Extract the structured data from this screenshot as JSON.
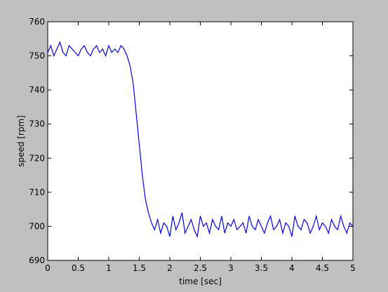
{
  "chart_data": {
    "type": "line",
    "xlabel": "time [sec]",
    "ylabel": "speed [rpm]",
    "x": [
      0,
      0.05,
      0.1,
      0.15,
      0.2,
      0.25,
      0.3,
      0.35,
      0.4,
      0.45,
      0.5,
      0.55,
      0.6,
      0.65,
      0.7,
      0.75,
      0.8,
      0.85,
      0.9,
      0.95,
      1,
      1.05,
      1.1,
      1.15,
      1.2,
      1.25,
      1.3,
      1.35,
      1.4,
      1.45,
      1.5,
      1.55,
      1.6,
      1.65,
      1.7,
      1.75,
      1.8,
      1.85,
      1.9,
      1.95,
      2,
      2.05,
      2.1,
      2.15,
      2.2,
      2.25,
      2.3,
      2.35,
      2.4,
      2.45,
      2.5,
      2.55,
      2.6,
      2.65,
      2.7,
      2.75,
      2.8,
      2.85,
      2.9,
      2.95,
      3,
      3.05,
      3.1,
      3.15,
      3.2,
      3.25,
      3.3,
      3.35,
      3.4,
      3.45,
      3.5,
      3.55,
      3.6,
      3.65,
      3.7,
      3.75,
      3.8,
      3.85,
      3.9,
      3.95,
      4,
      4.05,
      4.1,
      4.15,
      4.2,
      4.25,
      4.3,
      4.35,
      4.4,
      4.45,
      4.5,
      4.55,
      4.6,
      4.65,
      4.7,
      4.75,
      4.8,
      4.85,
      4.9,
      4.95,
      5
    ],
    "values": [
      751,
      753,
      750,
      752,
      754,
      751,
      750,
      753,
      752,
      751,
      750,
      752,
      753,
      751,
      750,
      752,
      753,
      751,
      752,
      750,
      753,
      751,
      752,
      751,
      753,
      752,
      750,
      747,
      742,
      733,
      724,
      715,
      708,
      704,
      701,
      699,
      702,
      698,
      701,
      700,
      697,
      703,
      699,
      701,
      704,
      698,
      700,
      702,
      699,
      697,
      703,
      700,
      701,
      698,
      702,
      700,
      699,
      703,
      698,
      701,
      700,
      702,
      699,
      700,
      701,
      698,
      703,
      700,
      699,
      702,
      700,
      698,
      701,
      703,
      699,
      700,
      702,
      698,
      701,
      700,
      697,
      703,
      700,
      699,
      702,
      701,
      698,
      700,
      703,
      699,
      701,
      700,
      698,
      702,
      700,
      699,
      703,
      700,
      698,
      701,
      700
    ],
    "color": "#0000ff",
    "xlim": [
      0,
      5
    ],
    "ylim": [
      690,
      760
    ],
    "xticks": [
      0,
      0.5,
      1,
      1.5,
      2,
      2.5,
      3,
      3.5,
      4,
      4.5,
      5
    ],
    "yticks": [
      690,
      700,
      710,
      720,
      730,
      740,
      750,
      760
    ]
  }
}
